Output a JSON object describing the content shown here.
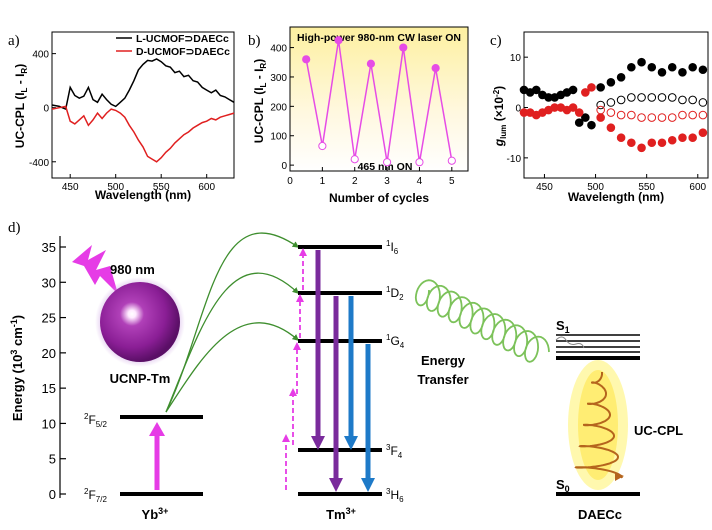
{
  "panels": {
    "a": "a)",
    "b": "b)",
    "c": "c)",
    "d": "d)"
  },
  "panel_a": {
    "ylabel": "UC-CPL (I",
    "ylabel_sub1": "L",
    "ylabel_mid": " - I",
    "ylabel_sub2": "R",
    "ylabel_end": ")",
    "xlabel": "Wavelength (nm)",
    "xticks": [
      "450",
      "500",
      "550",
      "600"
    ],
    "yticks": [
      "400",
      "0",
      "-400"
    ],
    "legend": [
      {
        "text": "L-UCMOF⊃DAECc",
        "color": "#000000"
      },
      {
        "text": "D-UCMOF⊃DAECc",
        "color": "#e02020"
      }
    ]
  },
  "panel_b": {
    "annotation_top": "High-power 980-nm CW laser ON",
    "annotation_bottom": "465 nm ON",
    "ylabel": "UC-CPL (I",
    "ylabel_sub1": "L",
    "ylabel_mid": " - I",
    "ylabel_sub2": "R",
    "ylabel_end": ")",
    "xlabel": "Number of cycles",
    "xticks": [
      "0",
      "1",
      "2",
      "3",
      "4",
      "5"
    ],
    "yticks": [
      "0",
      "100",
      "200",
      "300",
      "400"
    ]
  },
  "panel_c": {
    "ylabel_g": "g",
    "ylabel_sub": "lum",
    "ylabel_unit": " (×10",
    "ylabel_exp": "-2",
    "ylabel_end": ")",
    "xlabel": "Wavelength (nm)",
    "xticks": [
      "450",
      "500",
      "550",
      "600"
    ],
    "yticks": [
      "10",
      "0",
      "-10"
    ]
  },
  "panel_d": {
    "ylabel": "Energy (10",
    "ylabel_exp": "3",
    "ylabel_unit": " cm",
    "ylabel_exp2": "-1",
    "ylabel_end": ")",
    "yticks": [
      "0",
      "5",
      "10",
      "15",
      "20",
      "25",
      "30",
      "35"
    ],
    "laser": "980 nm",
    "particle": "UCNP-Tm",
    "yb_upper_sup": "2",
    "yb_upper": "F",
    "yb_upper_sub": "5/2",
    "yb_lower_sup": "2",
    "yb_lower": "F",
    "yb_lower_sub": "7/2",
    "yb_label": "Yb",
    "yb_charge": "3+",
    "tm_levels": [
      {
        "sup": "1",
        "name": "I",
        "sub": "6"
      },
      {
        "sup": "1",
        "name": "D",
        "sub": "2"
      },
      {
        "sup": "1",
        "name": "G",
        "sub": "4"
      },
      {
        "sup": "3",
        "name": "F",
        "sub": "4"
      },
      {
        "sup": "3",
        "name": "H",
        "sub": "6"
      }
    ],
    "tm_label": "Tm",
    "tm_charge": "3+",
    "energy_transfer_1": "Energy",
    "energy_transfer_2": "Transfer",
    "s1": "S",
    "s1_sub": "1",
    "s0": "S",
    "s0_sub": "0",
    "uccpl": "UC-CPL",
    "daecc": "DAECc"
  },
  "chart_data": [
    {
      "type": "line",
      "panel": "a",
      "xlabel": "Wavelength (nm)",
      "ylabel": "UC-CPL (IL - IR)",
      "xlim": [
        430,
        630
      ],
      "ylim": [
        -520,
        560
      ],
      "series": [
        {
          "name": "L-UCMOF⊃DAECc",
          "color": "#000000",
          "x": [
            430,
            438,
            445,
            450,
            455,
            460,
            465,
            470,
            475,
            480,
            485,
            490,
            495,
            500,
            505,
            510,
            515,
            520,
            525,
            530,
            535,
            540,
            545,
            550,
            555,
            560,
            565,
            570,
            575,
            580,
            585,
            590,
            595,
            600,
            605,
            610,
            615,
            620,
            625,
            630
          ],
          "values": [
            20,
            10,
            -10,
            150,
            90,
            70,
            85,
            150,
            60,
            40,
            100,
            60,
            25,
            10,
            40,
            70,
            130,
            200,
            280,
            320,
            350,
            345,
            360,
            340,
            310,
            300,
            260,
            270,
            230,
            240,
            200,
            190,
            150,
            130,
            110,
            130,
            90,
            80,
            60,
            40
          ]
        },
        {
          "name": "D-UCMOF⊃DAECc",
          "color": "#e02020",
          "x": [
            430,
            438,
            445,
            450,
            455,
            460,
            465,
            470,
            475,
            480,
            485,
            490,
            495,
            500,
            505,
            510,
            515,
            520,
            525,
            530,
            535,
            540,
            545,
            550,
            555,
            560,
            565,
            570,
            575,
            580,
            585,
            590,
            595,
            600,
            605,
            610,
            615,
            620,
            625,
            630
          ],
          "values": [
            -10,
            0,
            10,
            -100,
            -120,
            -90,
            -60,
            -130,
            -90,
            -40,
            -80,
            -40,
            -10,
            -20,
            -40,
            -70,
            -130,
            -180,
            -240,
            -290,
            -360,
            -380,
            -400,
            -370,
            -330,
            -300,
            -260,
            -230,
            -200,
            -180,
            -150,
            -130,
            -110,
            -100,
            -80,
            -90,
            -70,
            -60,
            -50,
            -40
          ]
        }
      ]
    },
    {
      "type": "line",
      "panel": "b",
      "xlabel": "Number of cycles",
      "ylabel": "UC-CPL (IL - IR)",
      "xlim": [
        0,
        5.5
      ],
      "ylim": [
        -20,
        470
      ],
      "series": [
        {
          "x": [
            0.5,
            1,
            1.5,
            2,
            2.5,
            3,
            3.5,
            4,
            4.5,
            5
          ],
          "values": [
            360,
            65,
            425,
            20,
            345,
            10,
            400,
            10,
            330,
            15
          ],
          "color": "#e64ce6"
        }
      ],
      "markers": {
        "filled_x": [
          0.5,
          1.5,
          2.5,
          3.5,
          4.5
        ],
        "open_x": [
          1,
          2,
          3,
          4,
          5
        ]
      }
    },
    {
      "type": "scatter",
      "panel": "c",
      "xlabel": "Wavelength (nm)",
      "ylabel": "glum (×10-2)",
      "xlim": [
        430,
        610
      ],
      "ylim": [
        -14,
        15
      ],
      "series": [
        {
          "name": "black filled",
          "color": "#000000",
          "filled": true,
          "x": [
            430,
            436,
            442,
            448,
            454,
            460,
            466,
            472,
            478,
            484,
            490,
            496,
            505,
            515,
            525,
            535,
            545,
            555,
            565,
            575,
            585,
            595,
            605
          ],
          "values": [
            3.5,
            3,
            3.5,
            2.5,
            2,
            2,
            2.5,
            3,
            3.5,
            -3,
            -2,
            -3.5,
            4,
            5,
            6,
            8,
            9,
            8,
            7,
            8,
            7,
            8,
            7.5
          ]
        },
        {
          "name": "red filled",
          "color": "#e02020",
          "filled": true,
          "x": [
            430,
            436,
            442,
            448,
            454,
            460,
            466,
            472,
            478,
            484,
            490,
            496,
            505,
            515,
            525,
            535,
            545,
            555,
            565,
            575,
            585,
            595,
            605
          ],
          "values": [
            -1,
            -1,
            -1.5,
            -1,
            -0.5,
            0,
            0,
            -0.5,
            0,
            -1,
            3,
            4,
            -2,
            -4,
            -6,
            -7,
            -8,
            -7,
            -7,
            -6.5,
            -6,
            -6,
            -5
          ]
        },
        {
          "name": "black open",
          "color": "#000000",
          "filled": false,
          "x": [
            505,
            515,
            525,
            535,
            545,
            555,
            565,
            575,
            585,
            595,
            605
          ],
          "values": [
            0.5,
            1,
            1.5,
            2,
            2,
            2,
            2,
            2,
            1.5,
            1.5,
            1
          ]
        },
        {
          "name": "red open",
          "color": "#e02020",
          "filled": false,
          "x": [
            505,
            515,
            525,
            535,
            545,
            555,
            565,
            575,
            585,
            595,
            605
          ],
          "values": [
            -0.5,
            -1,
            -1.5,
            -1.5,
            -2,
            -2,
            -2,
            -2,
            -1.5,
            -1.5,
            -1.5
          ]
        }
      ]
    }
  ]
}
